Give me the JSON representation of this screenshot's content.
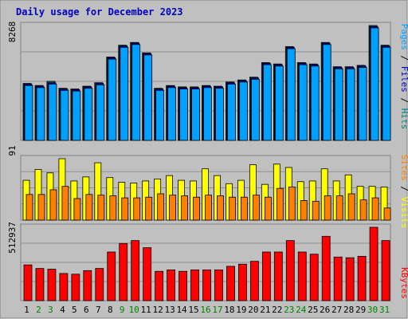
{
  "colors": {
    "background": "#c0c0c0",
    "plot_bg": "#c0c0c0",
    "border": "#808080",
    "title": "#0000c0",
    "pages": "#00a0ff",
    "files": "#0000c0",
    "hits": "#008080",
    "visits": "#ffff00",
    "sites": "#ff8000",
    "kbytes": "#ff0000",
    "weekend_day": "#008000",
    "weekday": "#000000"
  },
  "chart_data": [
    {
      "type": "bar",
      "title": "Daily usage for December 2023",
      "panel": "hits_files_pages",
      "ymax_label": "8268",
      "ylim": [
        0,
        8268
      ],
      "legend": [
        "Pages",
        "Files",
        "Hits"
      ],
      "categories": [
        "1",
        "2",
        "3",
        "4",
        "5",
        "6",
        "7",
        "8",
        "9",
        "10",
        "11",
        "12",
        "13",
        "14",
        "15",
        "16",
        "17",
        "18",
        "19",
        "20",
        "21",
        "22",
        "23",
        "24",
        "25",
        "26",
        "27",
        "28",
        "29",
        "30",
        "31"
      ],
      "series": [
        {
          "name": "Hits",
          "values": [
            4100,
            3950,
            4250,
            3750,
            3700,
            3900,
            4150,
            6000,
            6850,
            7050,
            6300,
            3750,
            3950,
            3850,
            3850,
            3950,
            3900,
            4200,
            4350,
            4550,
            5600,
            5500,
            6750,
            5600,
            5500,
            7050,
            5300,
            5300,
            5400,
            8268,
            6850
          ]
        },
        {
          "name": "Files",
          "values": [
            4050,
            3900,
            4150,
            3700,
            3650,
            3850,
            4100,
            5950,
            6800,
            7000,
            6250,
            3700,
            3900,
            3800,
            3800,
            3900,
            3850,
            4150,
            4300,
            4500,
            5550,
            5450,
            6700,
            5550,
            5450,
            7000,
            5250,
            5250,
            5350,
            8200,
            6800
          ]
        },
        {
          "name": "Pages",
          "values": [
            3950,
            3800,
            4050,
            3600,
            3550,
            3750,
            4000,
            5850,
            6700,
            6900,
            6150,
            3600,
            3800,
            3700,
            3700,
            3800,
            3750,
            4050,
            4200,
            4400,
            5450,
            5350,
            6600,
            5450,
            5350,
            6900,
            5150,
            5150,
            5250,
            8100,
            6700
          ]
        }
      ]
    },
    {
      "type": "bar",
      "panel": "visits_sites",
      "ymax_label": "91",
      "ylim": [
        0,
        91
      ],
      "legend": [
        "Sites",
        "Visits"
      ],
      "categories": [
        "1",
        "2",
        "3",
        "4",
        "5",
        "6",
        "7",
        "8",
        "9",
        "10",
        "11",
        "12",
        "13",
        "14",
        "15",
        "16",
        "17",
        "18",
        "19",
        "20",
        "21",
        "22",
        "23",
        "24",
        "25",
        "26",
        "27",
        "28",
        "29",
        "30",
        "31"
      ],
      "series": [
        {
          "name": "Visits",
          "values": [
            59,
            75,
            70,
            91,
            58,
            64,
            85,
            63,
            56,
            55,
            58,
            61,
            66,
            59,
            58,
            76,
            66,
            54,
            59,
            82,
            53,
            83,
            78,
            57,
            58,
            76,
            58,
            67,
            50,
            50,
            49
          ]
        },
        {
          "name": "Sites",
          "values": [
            38,
            38,
            45,
            50,
            32,
            38,
            37,
            36,
            33,
            33,
            34,
            39,
            37,
            36,
            34,
            37,
            36,
            34,
            34,
            37,
            34,
            47,
            49,
            29,
            28,
            36,
            36,
            39,
            30,
            33,
            18
          ]
        }
      ]
    },
    {
      "type": "bar",
      "panel": "kbytes",
      "ymax_label": "512937",
      "ylim": [
        0,
        512937
      ],
      "legend": [
        "KBytes"
      ],
      "categories": [
        "1",
        "2",
        "3",
        "4",
        "5",
        "6",
        "7",
        "8",
        "9",
        "10",
        "11",
        "12",
        "13",
        "14",
        "15",
        "16",
        "17",
        "18",
        "19",
        "20",
        "21",
        "22",
        "23",
        "24",
        "25",
        "26",
        "27",
        "28",
        "29",
        "30",
        "31"
      ],
      "series": [
        {
          "name": "KBytes",
          "values": [
            250000,
            225000,
            220000,
            190000,
            185000,
            210000,
            225000,
            340000,
            400000,
            420000,
            370000,
            205000,
            215000,
            205000,
            215000,
            215000,
            215000,
            240000,
            255000,
            275000,
            340000,
            340000,
            420000,
            340000,
            325000,
            450000,
            305000,
            300000,
            310000,
            512937,
            420000
          ]
        }
      ]
    }
  ]
}
